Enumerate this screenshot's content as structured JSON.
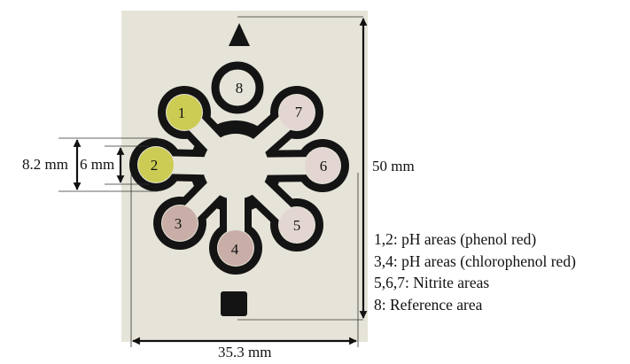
{
  "figure": {
    "labels": {
      "outer_width": "8.2 mm",
      "inner_width": "6 mm",
      "height": "50 mm",
      "width": "35.3 mm"
    },
    "zones": [
      {
        "label": "1",
        "fill": "#cccc55"
      },
      {
        "label": "2",
        "fill": "#cccc55"
      },
      {
        "label": "3",
        "fill": "#c8aea6"
      },
      {
        "label": "4",
        "fill": "#c8aea6"
      },
      {
        "label": "5",
        "fill": "#e3d6d2"
      },
      {
        "label": "6",
        "fill": "#e3d6d2"
      },
      {
        "label": "7",
        "fill": "#e3d6d2"
      },
      {
        "label": "8",
        "fill": "#e6e4d8"
      }
    ],
    "legend": [
      "1,2: pH areas (phenol red)",
      "3,4: pH areas (chlorophenol red)",
      "5,6,7: Nitrite areas",
      "8: Reference area"
    ],
    "colors": {
      "paper": "#e6e4d8",
      "wax_barrier": "#141414",
      "background": "#ffffff"
    }
  }
}
